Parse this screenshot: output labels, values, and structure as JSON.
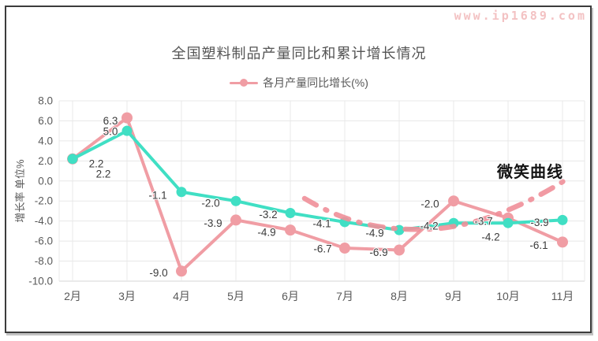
{
  "window": {
    "watermark": "www.ip1689.com"
  },
  "chart_data": {
    "type": "line",
    "title": "全国塑料制品产量同比和累计增长情况",
    "xlabel": "",
    "ylabel": "增长率 单位%",
    "ylim": [
      -10,
      8
    ],
    "yticks": [
      8,
      6,
      4,
      2,
      0,
      -2,
      -4,
      -6,
      -8,
      -10
    ],
    "grid": true,
    "legend_position": "top",
    "categories": [
      "2月",
      "3月",
      "4月",
      "5月",
      "6月",
      "7月",
      "8月",
      "9月",
      "10月",
      "11月"
    ],
    "series": [
      {
        "name": "各月产量同比增长(%)",
        "color": "#f09da4",
        "in_legend": true,
        "values": [
          2.2,
          6.3,
          -9.0,
          -3.9,
          -4.9,
          -6.7,
          -6.9,
          -2.0,
          -3.7,
          -6.1
        ],
        "label_offsets": [
          [
            30,
            6
          ],
          [
            -21,
            4
          ],
          [
            -29,
            2
          ],
          [
            -29,
            4
          ],
          [
            -30,
            3
          ],
          [
            -28,
            1
          ],
          [
            -26,
            3
          ],
          [
            -30,
            4
          ],
          [
            -31,
            4
          ],
          [
            -30,
            4
          ]
        ]
      },
      {
        "name": "",
        "color": "#40dfc4",
        "in_legend": false,
        "values": [
          2.2,
          5.0,
          -1.1,
          -2.0,
          -3.2,
          -4.1,
          -4.9,
          -4.2,
          -4.2,
          -3.9
        ],
        "label_offsets": [
          [
            39,
            19
          ],
          [
            -21,
            1
          ],
          [
            -30,
            4
          ],
          [
            -32,
            3
          ],
          [
            -28,
            2
          ],
          [
            -29,
            2
          ],
          [
            -31,
            4
          ],
          [
            -31,
            4
          ],
          [
            -22,
            18
          ],
          [
            -29,
            3
          ]
        ]
      }
    ],
    "annotation": {
      "label": "微笑曲线",
      "style": "dashed-smile-curve",
      "color": "#ef8f99"
    },
    "colors": {
      "grid": "#e8e8e8",
      "axis": "#d6d6d6",
      "tick_text": "#595959",
      "data_label_text": "#3a3a3a",
      "title_text": "#545454"
    }
  }
}
